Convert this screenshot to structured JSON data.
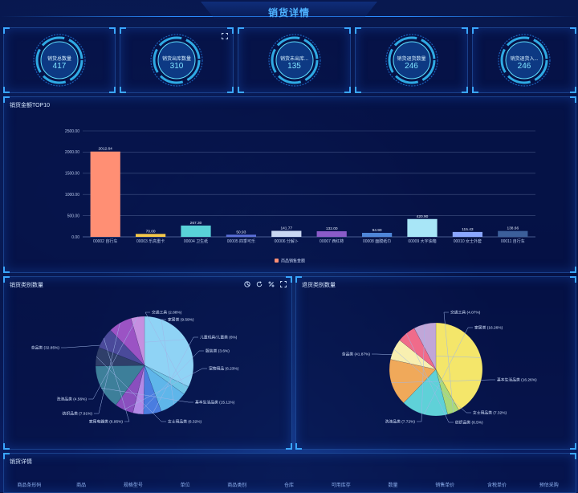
{
  "header": {
    "title": "销货详情"
  },
  "kpis": [
    {
      "label": "销货总数量",
      "value": "417"
    },
    {
      "label": "销货出库数量",
      "value": "310"
    },
    {
      "label": "销货未出库...",
      "value": "135"
    },
    {
      "label": "销货退货数量",
      "value": "246"
    },
    {
      "label": "销货退货入...",
      "value": "246"
    }
  ],
  "bar_panel": {
    "title": "销货金额TOP10"
  },
  "left_pie_panel": {
    "title": "销货类别数量"
  },
  "right_pie_panel": {
    "title": "退货类别数量"
  },
  "detail_panel": {
    "title": "销货详情"
  },
  "table": {
    "columns": [
      "商品条形码",
      "商品",
      "规格型号",
      "单位",
      "商品类别",
      "仓库",
      "可用库存",
      "数量",
      "销售单价",
      "含税单价",
      "预估采购"
    ]
  },
  "icons": {
    "fullscreen": "fullscreen-icon",
    "pie-view": "pie-chart-icon",
    "refresh": "refresh-icon",
    "percent": "percent-icon"
  },
  "colors": {
    "accent": "#3aa6ff",
    "background": "#071447"
  },
  "chart_data": [
    {
      "type": "bar",
      "title": "",
      "categories": [
        "00002 自行车",
        "00003 乐高重卡",
        "00004 卫生纸",
        "00005 四季可乐",
        "00006 分解卜",
        "00007 西红柿",
        "00008 面膜纸巾",
        "00009 大宇油箱",
        "00010 女士外套",
        "00011 自行车"
      ],
      "series": [
        {
          "name": "商品销售金额",
          "values": [
            2012.64,
            70.0,
            267.3,
            50.93,
            141.77,
            132.0,
            94.9,
            420.9,
            115.43,
            138.66
          ]
        }
      ],
      "value_labels": [
        "2012.64",
        "70.00",
        "267.30",
        "50.93",
        "141.77",
        "132.00",
        "94.90",
        "420.90",
        "115.43",
        "138.66"
      ],
      "bar_colors": [
        "#ff8f74",
        "#f4c84a",
        "#59d2d8",
        "#5b6fd8",
        "#c9d7f2",
        "#8a5bc8",
        "#4f86d8",
        "#a8e6f7",
        "#8aa6ff",
        "#3c5f9a"
      ],
      "y_ticks": [
        "0.00",
        "500.00",
        "1000.00",
        "1500.00",
        "2000.00",
        "2500.00"
      ],
      "ylim": [
        0,
        2500
      ],
      "grid": true,
      "legend_position": "bottom"
    },
    {
      "type": "pie",
      "title": "",
      "slices": [
        {
          "label": "食品类 (32.85%)",
          "value": 32.85,
          "color": "#8fd3f5"
        },
        {
          "label": "交通工具 (2.88%)",
          "value": 2.88,
          "color": "#6fc5e6"
        },
        {
          "label": "家居类 (9.59%)",
          "value": 9.59,
          "color": "#5fb6ea"
        },
        {
          "label": "儿童玩具/儿童类 (6%)",
          "value": 6.0,
          "color": "#4a7de0"
        },
        {
          "label": "服装类 (3.6%)",
          "value": 3.6,
          "color": "#b389e6"
        },
        {
          "label": "宠物用品 (6.23%)",
          "value": 6.23,
          "color": "#8a4fbe"
        },
        {
          "label": "基本生活品类 (15.11%)",
          "value": 15.11,
          "color": "#3d7f9a"
        },
        {
          "label": "女士用品类 (6.32%)",
          "value": 6.32,
          "color": "#2f3f6a"
        },
        {
          "label": "家用电器类 (6.95%)",
          "value": 6.95,
          "color": "#4a4a9a"
        },
        {
          "label": "纺织品类 (7.91%)",
          "value": 7.91,
          "color": "#9b53c4"
        },
        {
          "label": "洗涤品类 (4.56%)",
          "value": 4.56,
          "color": "#c58fe0"
        }
      ]
    },
    {
      "type": "pie",
      "title": "",
      "slices": [
        {
          "label": "食品类 (41.87%)",
          "value": 41.87,
          "color": "#f4e66a"
        },
        {
          "label": "交通工具 (4.07%)",
          "value": 4.07,
          "color": "#a9d97a"
        },
        {
          "label": "家居类 (16.26%)",
          "value": 16.26,
          "color": "#5fd1d8"
        },
        {
          "label": "基本生活品类 (16.26%)",
          "value": 16.26,
          "color": "#f0a95a"
        },
        {
          "label": "女士用品类 (7.32%)",
          "value": 7.32,
          "color": "#f8efb0"
        },
        {
          "label": "纺织品类 (6.5%)",
          "value": 6.5,
          "color": "#f06b8a"
        },
        {
          "label": "洗涤品类 (7.72%)",
          "value": 7.72,
          "color": "#c1a6d8"
        }
      ]
    }
  ]
}
